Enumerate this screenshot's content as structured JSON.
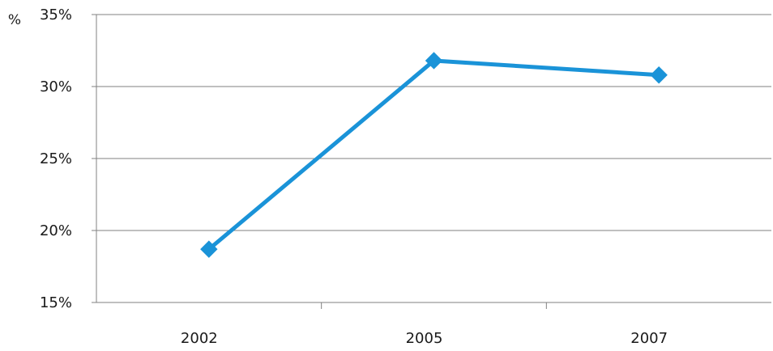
{
  "chart_data": {
    "type": "line",
    "title": "",
    "xlabel": "",
    "ylabel": "%",
    "categories": [
      "2002",
      "2005",
      "2007"
    ],
    "series": [
      {
        "values": [
          18.7,
          31.8,
          30.8
        ],
        "color": "#1a93d8",
        "marker": "diamond"
      }
    ],
    "ylim": [
      15,
      35
    ],
    "y_ticks": [
      15,
      20,
      25,
      30,
      35
    ],
    "y_tick_labels": [
      "15%",
      "20%",
      "25%",
      "30%",
      "35%"
    ],
    "grid": true,
    "legend": "none",
    "axis_color": "#808080",
    "grid_color": "#808080"
  }
}
